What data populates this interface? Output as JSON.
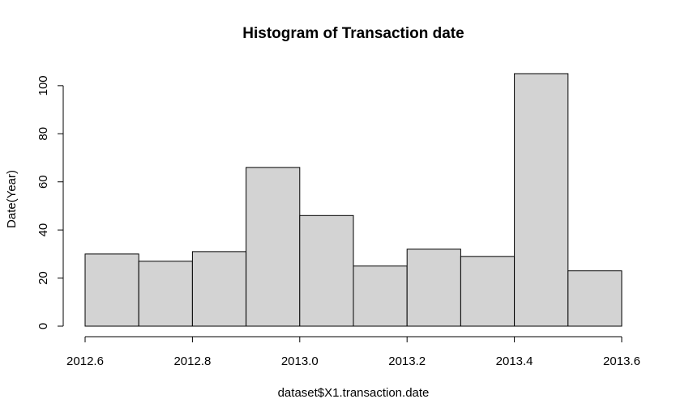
{
  "chart_data": {
    "type": "bar",
    "title": "Histogram of Transaction date",
    "xlabel": "dataset$X1.transaction.date",
    "ylabel": "Date(Year)",
    "bins": [
      {
        "x0": 2012.6,
        "x1": 2012.7,
        "count": 30
      },
      {
        "x0": 2012.7,
        "x1": 2012.8,
        "count": 27
      },
      {
        "x0": 2012.8,
        "x1": 2012.9,
        "count": 31
      },
      {
        "x0": 2012.9,
        "x1": 2013.0,
        "count": 66
      },
      {
        "x0": 2013.0,
        "x1": 2013.1,
        "count": 46
      },
      {
        "x0": 2013.1,
        "x1": 2013.2,
        "count": 25
      },
      {
        "x0": 2013.2,
        "x1": 2013.3,
        "count": 32
      },
      {
        "x0": 2013.3,
        "x1": 2013.4,
        "count": 29
      },
      {
        "x0": 2013.4,
        "x1": 2013.5,
        "count": 105
      },
      {
        "x0": 2013.5,
        "x1": 2013.6,
        "count": 23
      }
    ],
    "xlim": [
      2012.6,
      2013.6
    ],
    "ylim": [
      0,
      105
    ],
    "x_ticks": [
      2012.6,
      2012.8,
      2013.0,
      2013.2,
      2013.4,
      2013.6
    ],
    "x_tick_labels": [
      "2012.6",
      "2012.8",
      "2013.0",
      "2013.2",
      "2013.4",
      "2013.6"
    ],
    "y_ticks": [
      0,
      20,
      40,
      60,
      80,
      100
    ],
    "y_tick_labels": [
      "0",
      "20",
      "40",
      "60",
      "80",
      "100"
    ],
    "grid": false,
    "colors": {
      "bar_fill": "#d3d3d3",
      "bar_stroke": "#000000"
    }
  }
}
